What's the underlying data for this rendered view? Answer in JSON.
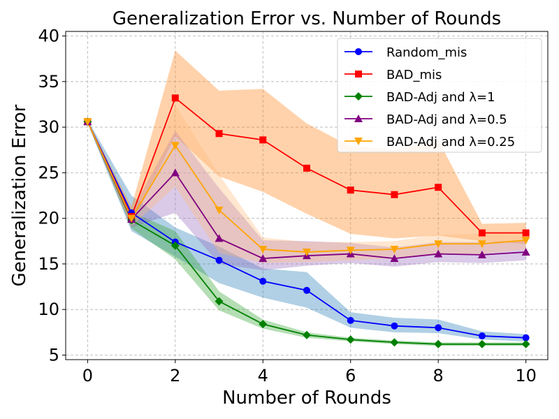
{
  "chart_data": {
    "type": "line",
    "title": "Generalization Error vs. Number of Rounds",
    "xlabel": "Number of Rounds",
    "ylabel": "Generalization Error",
    "xlim": [
      -0.5,
      10.5
    ],
    "ylim": [
      4.5,
      40.5
    ],
    "xticks": [
      0,
      2,
      4,
      6,
      8,
      10
    ],
    "yticks": [
      5,
      10,
      15,
      20,
      25,
      30,
      35,
      40
    ],
    "grid": true,
    "legend_position": "top-right",
    "x": [
      0,
      1,
      2,
      3,
      4,
      5,
      6,
      7,
      8,
      9,
      10
    ],
    "series": [
      {
        "name": "Random_mis",
        "color": "#0000ff",
        "marker": "circle",
        "values": [
          30.6,
          20.6,
          17.4,
          15.4,
          13.1,
          12.1,
          8.8,
          8.2,
          8.0,
          7.1,
          6.9
        ],
        "band_low": [
          30.4,
          18.6,
          15.8,
          12.9,
          11.3,
          10.2,
          8.0,
          7.5,
          7.4,
          6.7,
          6.5
        ],
        "band_high": [
          30.8,
          22.5,
          19.0,
          16.9,
          14.5,
          14.1,
          9.7,
          9.1,
          8.9,
          7.6,
          7.3
        ],
        "band_color": "#1f77b4"
      },
      {
        "name": "BAD_mis",
        "color": "#ff0000",
        "marker": "square",
        "values": [
          30.6,
          20.2,
          33.2,
          29.3,
          28.6,
          25.5,
          23.1,
          22.6,
          23.4,
          18.4,
          18.4
        ],
        "band_low": [
          30.5,
          19.2,
          29.0,
          24.6,
          22.9,
          20.5,
          18.3,
          17.8,
          18.1,
          17.5,
          17.2
        ],
        "band_high": [
          30.7,
          21.3,
          38.4,
          34.0,
          34.2,
          30.4,
          27.9,
          27.5,
          28.6,
          19.4,
          19.5
        ],
        "band_color": "#ff7f0e"
      },
      {
        "name": "BAD-Adj and λ=1",
        "color": "#008000",
        "marker": "diamond",
        "values": [
          30.6,
          19.8,
          17.0,
          10.9,
          8.4,
          7.2,
          6.7,
          6.4,
          6.2,
          6.2,
          6.2
        ],
        "band_low": [
          30.5,
          18.9,
          15.5,
          9.9,
          7.9,
          6.9,
          6.5,
          6.2,
          6.0,
          6.0,
          6.0
        ],
        "band_high": [
          30.7,
          20.7,
          18.6,
          12.0,
          8.9,
          7.5,
          6.9,
          6.6,
          6.4,
          6.4,
          6.4
        ],
        "band_color": "#2ca02c"
      },
      {
        "name": "BAD-Adj and λ=0.5",
        "color": "#800080",
        "marker": "triangle-up",
        "values": [
          30.6,
          19.9,
          25.0,
          17.8,
          15.6,
          15.9,
          16.1,
          15.6,
          16.1,
          16.0,
          16.3
        ],
        "band_low": [
          30.5,
          19.0,
          20.6,
          15.0,
          14.3,
          14.8,
          15.1,
          14.7,
          15.2,
          15.1,
          15.4
        ],
        "band_high": [
          30.7,
          20.8,
          29.6,
          23.3,
          17.6,
          17.5,
          17.3,
          16.8,
          17.4,
          17.4,
          17.6
        ],
        "band_color": "#9467bd"
      },
      {
        "name": "BAD-Adj and λ=0.25",
        "color": "#ffa500",
        "marker": "triangle-down",
        "values": [
          30.6,
          20.0,
          28.0,
          20.9,
          16.6,
          16.3,
          16.5,
          16.6,
          17.2,
          17.2,
          17.6
        ],
        "band_low": [
          30.5,
          19.1,
          23.5,
          16.2,
          15.1,
          15.2,
          15.4,
          15.6,
          16.0,
          16.1,
          16.6
        ],
        "band_high": [
          30.7,
          20.9,
          32.4,
          24.8,
          17.9,
          17.4,
          17.4,
          17.5,
          18.2,
          18.3,
          18.5
        ],
        "band_color": "#ffbb78"
      }
    ]
  }
}
